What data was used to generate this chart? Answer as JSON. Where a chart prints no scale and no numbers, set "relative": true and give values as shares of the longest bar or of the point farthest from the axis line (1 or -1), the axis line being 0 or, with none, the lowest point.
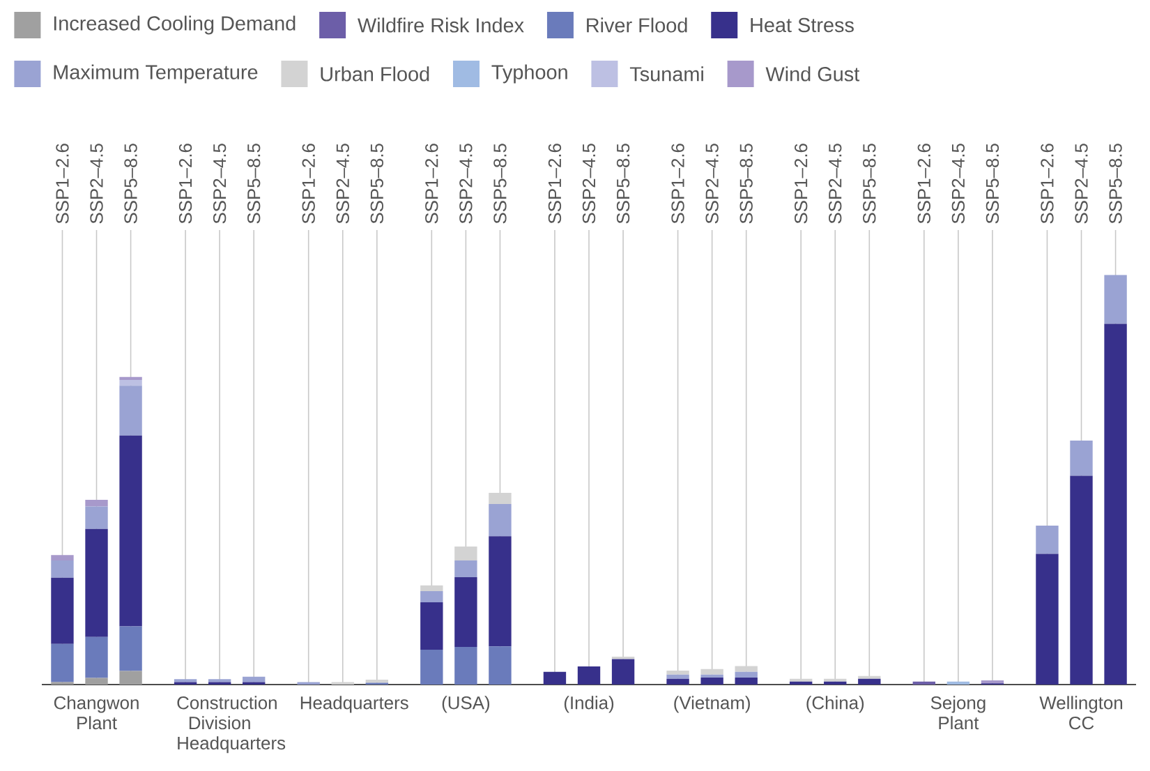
{
  "chart_data": {
    "type": "bar",
    "stacked": true,
    "relative": true,
    "legend": "top",
    "grid": "x",
    "categories": [
      "SSP1–2.6",
      "SSP2–4.5",
      "SSP5–8.5",
      "SSP1–2.6",
      "SSP2–4.5",
      "SSP5–8.5",
      "SSP1–2.6",
      "SSP2–4.5",
      "SSP5–8.5",
      "SSP1–2.6",
      "SSP2–4.5",
      "SSP5–8.5",
      "SSP1–2.6",
      "SSP2–4.5",
      "SSP5–8.5",
      "SSP1–2.6",
      "SSP2–4.5",
      "SSP5–8.5",
      "SSP1–2.6",
      "SSP2–4.5",
      "SSP5–8.5",
      "SSP1–2.6",
      "SSP2–4.5",
      "SSP5–8.5",
      "SSP1–2.6",
      "SSP2–4.5",
      "SSP5–8.5"
    ],
    "annotations": [
      "Changwon Plant",
      "Construction Division Headquarters",
      "Headquarters",
      "(USA)",
      "(India)",
      "(Vietnam)",
      "(China)",
      "Sejong Plant",
      "Wellington CC"
    ],
    "series": [
      {
        "name": "Increased Cooling Demand",
        "color": "#a0a0a0",
        "values": [
          0.006,
          0.016,
          0.033,
          null,
          null,
          null,
          null,
          null,
          null,
          null,
          null,
          null,
          null,
          null,
          null,
          null,
          null,
          null,
          null,
          null,
          null,
          null,
          null,
          null,
          null,
          null,
          null
        ]
      },
      {
        "name": "Wildfire Risk Index",
        "color": "#6c5ea8",
        "values": [
          null,
          null,
          null,
          null,
          null,
          null,
          null,
          null,
          null,
          null,
          null,
          null,
          null,
          null,
          null,
          null,
          null,
          null,
          null,
          null,
          null,
          0.007,
          null,
          null,
          null,
          null,
          null
        ]
      },
      {
        "name": "River Flood",
        "color": "#6a7bbb",
        "values": [
          0.093,
          0.1,
          0.109,
          null,
          null,
          null,
          null,
          null,
          0.004,
          0.085,
          0.092,
          0.093,
          null,
          null,
          null,
          null,
          null,
          null,
          null,
          null,
          null,
          null,
          null,
          null,
          null,
          null,
          null
        ]
      },
      {
        "name": "Heat Stress",
        "color": "#37308b",
        "values": [
          0.162,
          0.264,
          0.466,
          0.006,
          0.006,
          0.006,
          null,
          null,
          null,
          0.116,
          0.17,
          0.269,
          0.031,
          0.044,
          0.062,
          0.014,
          0.017,
          0.017,
          0.007,
          0.007,
          0.014,
          null,
          null,
          0.003,
          0.319,
          0.51,
          0.881
        ]
      },
      {
        "name": "Maximum Temperature",
        "color": "#9aa3d3",
        "values": [
          0.042,
          0.055,
          0.122,
          0.007,
          0.007,
          0.013,
          0.006,
          null,
          null,
          0.027,
          0.041,
          0.079,
          null,
          null,
          null,
          0.01,
          0.007,
          0.014,
          null,
          null,
          null,
          null,
          null,
          null,
          0.069,
          0.086,
          0.119
        ]
      },
      {
        "name": "Urban Flood",
        "color": "#d3d3d3",
        "values": [
          null,
          null,
          null,
          null,
          null,
          null,
          null,
          0.006,
          0.008,
          0.014,
          0.034,
          0.027,
          null,
          null,
          0.006,
          0.01,
          0.014,
          0.014,
          0.007,
          0.007,
          0.007,
          null,
          null,
          null,
          null,
          null,
          null
        ]
      },
      {
        "name": "Typhoon",
        "color": "#a0bbe3",
        "values": [
          null,
          null,
          null,
          null,
          null,
          null,
          null,
          null,
          null,
          null,
          null,
          null,
          null,
          null,
          null,
          null,
          null,
          null,
          null,
          null,
          null,
          null,
          0.007,
          null,
          null,
          null,
          null
        ]
      },
      {
        "name": "Tsunami",
        "color": "#bdc0e3",
        "values": [
          null,
          null,
          0.014,
          null,
          null,
          null,
          null,
          null,
          null,
          null,
          null,
          null,
          null,
          null,
          null,
          null,
          null,
          null,
          null,
          null,
          null,
          null,
          null,
          null,
          null,
          null,
          null
        ]
      },
      {
        "name": "Wind Gust",
        "color": "#a799cb",
        "values": [
          0.013,
          0.016,
          0.007,
          null,
          null,
          null,
          null,
          null,
          null,
          null,
          null,
          null,
          null,
          null,
          null,
          null,
          null,
          null,
          null,
          null,
          null,
          null,
          null,
          0.007,
          null,
          null,
          null
        ]
      }
    ]
  }
}
